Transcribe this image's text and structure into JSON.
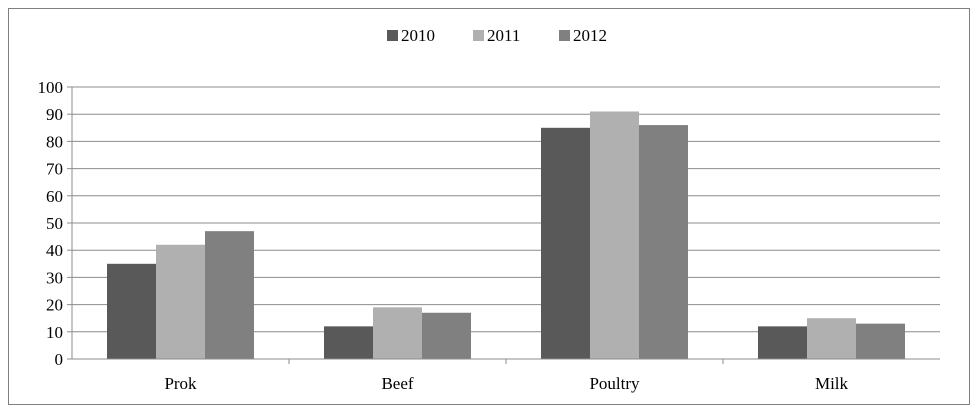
{
  "chart_data": {
    "type": "bar",
    "categories": [
      "Prok",
      "Beef",
      "Poultry",
      "Milk"
    ],
    "series": [
      {
        "name": "2010",
        "values": [
          35,
          12,
          85,
          12
        ],
        "color": "#595959"
      },
      {
        "name": "2011",
        "values": [
          42,
          19,
          91,
          15
        ],
        "color": "#b0b0b0"
      },
      {
        "name": "2012",
        "values": [
          47,
          17,
          86,
          13
        ],
        "color": "#808080"
      }
    ],
    "title": "",
    "xlabel": "",
    "ylabel": "",
    "ylim": [
      0,
      100
    ],
    "yticks": [
      "0",
      "10",
      "20",
      "30",
      "40",
      "50",
      "60",
      "70",
      "80",
      "90",
      "100"
    ],
    "grid": true,
    "legend_position": "top"
  }
}
